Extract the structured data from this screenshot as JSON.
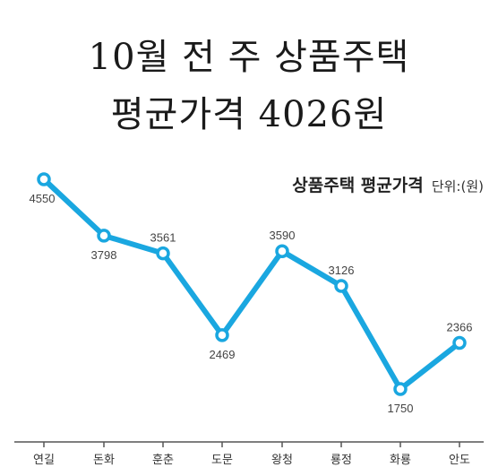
{
  "headline": {
    "line1": "10월 전 주 상품주택",
    "line2": "평균가격 4026원"
  },
  "chart_data": {
    "type": "line",
    "title": "상품주택 평균가격",
    "unit_label": "단위:(원)",
    "categories": [
      "연길",
      "돈화",
      "훈춘",
      "도문",
      "왕청",
      "룡정",
      "화룡",
      "안도"
    ],
    "series": [
      {
        "values": [
          4550,
          3798,
          3561,
          2469,
          3590,
          3126,
          1750,
          2366
        ]
      }
    ],
    "data_labels": [
      "4550",
      "3798",
      "3561",
      "2469",
      "3590",
      "3126",
      "1750",
      "2366"
    ],
    "line_color": "#1aa7e0",
    "axis_color": "#555555"
  }
}
